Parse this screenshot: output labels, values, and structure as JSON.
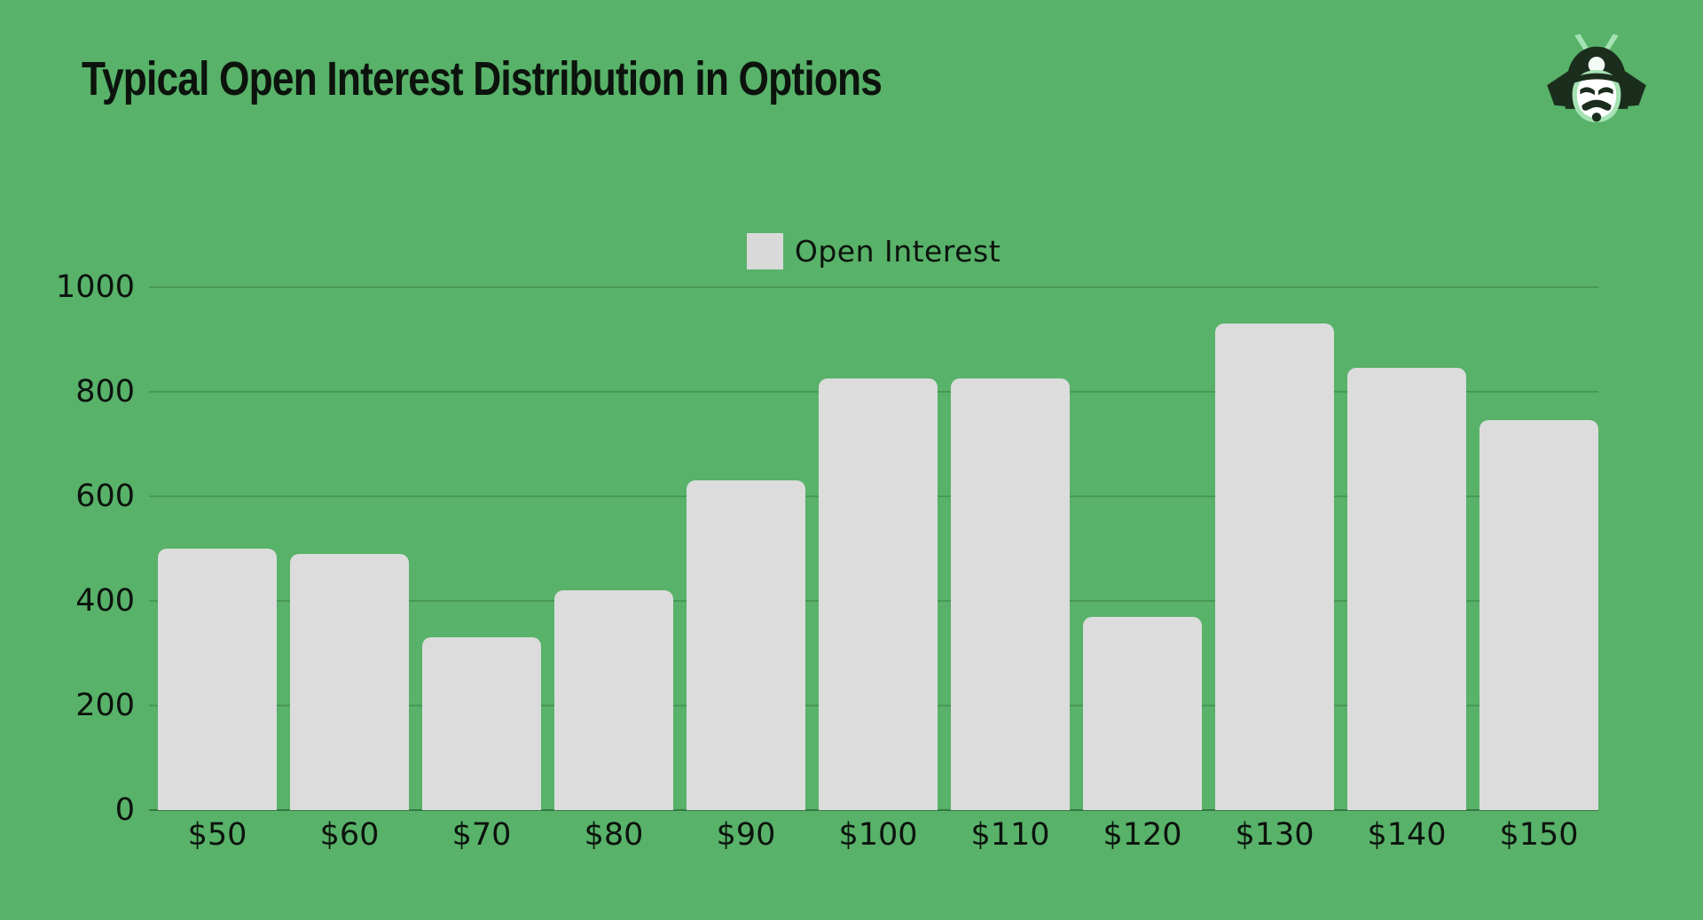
{
  "page": {
    "title": "Typical Open Interest Distribution in Options",
    "background_color": "#58b269",
    "text_color": "#0c130d",
    "logo_name": "samurai-helmet-logo"
  },
  "legend": {
    "label": "Open Interest",
    "swatch_color": "#d9d9d9",
    "position": "top-center"
  },
  "chart_data": {
    "type": "bar",
    "title": "Typical Open Interest Distribution in Options",
    "categories": [
      "$50",
      "$60",
      "$70",
      "$80",
      "$90",
      "$100",
      "$110",
      "$120",
      "$130",
      "$140",
      "$150"
    ],
    "series": [
      {
        "name": "Open Interest",
        "values": [
          500,
          490,
          330,
          420,
          630,
          825,
          825,
          370,
          930,
          845,
          745
        ]
      }
    ],
    "xlabel": "",
    "ylabel": "",
    "ylim": [
      0,
      1000
    ],
    "yticks": [
      0,
      200,
      400,
      600,
      800,
      1000
    ],
    "grid": "horizontal",
    "legend_position": "top-center",
    "bar_color": "#dcdcdc",
    "background_color": "#58b269"
  }
}
